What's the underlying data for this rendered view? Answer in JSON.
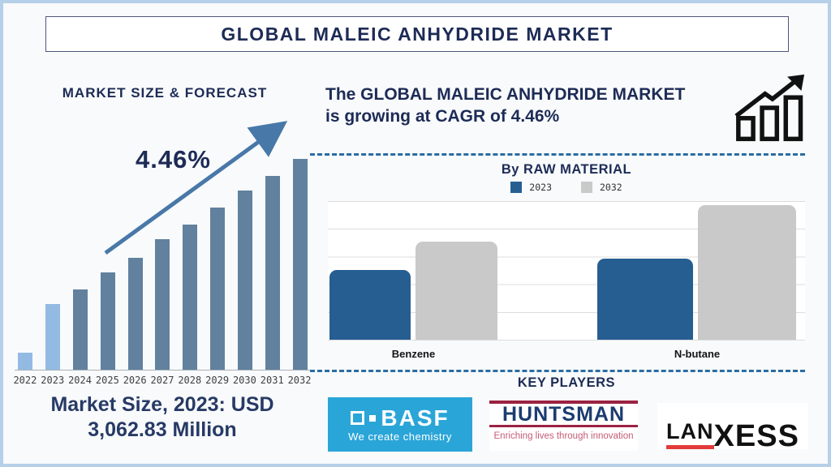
{
  "page": {
    "title": "GLOBAL MALEIC ANHYDRIDE MARKET"
  },
  "colors": {
    "navy_text": "#1d2b56",
    "forecast_bar_highlight": "#93bae2",
    "forecast_bar_main": "#61819f",
    "trend_arrow": "#4878a8",
    "divider_dash": "#2b6ca3",
    "raw_bar_2023": "#265e92",
    "raw_bar_2032": "#c9c9c9",
    "basf_background": "#2aa5d8",
    "huntsman_red": "#9b2242",
    "lanxess_red": "#e23b3b"
  },
  "left": {
    "heading": "MARKET SIZE & FORECAST",
    "cagr_label": "4.46%",
    "market_size_line1": "Market Size, 2023: USD",
    "market_size_line2": "3,062.83 Million"
  },
  "right": {
    "headline_line1": "The GLOBAL MALEIC ANHYDRIDE MARKET",
    "headline_line2": "is growing at CAGR of 4.46%",
    "raw_material_title": "By RAW MATERIAL",
    "legend": [
      {
        "label": "2023",
        "color": "#265e92"
      },
      {
        "label": "2032",
        "color": "#c9c9c9"
      }
    ],
    "key_players_title": "KEY PLAYERS",
    "logos": {
      "basf": {
        "brand": "BASF",
        "tagline": "We create chemistry"
      },
      "huntsman": {
        "brand": "HUNTSMAN",
        "tagline": "Enriching lives through innovation"
      },
      "lanxess": {
        "brand_part1": "LAN",
        "brand_part2": "XESS"
      }
    }
  },
  "chart_data": [
    {
      "type": "bar",
      "title": "MARKET SIZE & FORECAST",
      "categories": [
        "2022",
        "2023",
        "2024",
        "2025",
        "2026",
        "2027",
        "2028",
        "2029",
        "2030",
        "2031",
        "2032"
      ],
      "values_relative_pct": [
        8,
        31,
        38,
        46,
        53,
        62,
        69,
        77,
        85,
        92,
        100
      ],
      "bar_colors": [
        "#93bae2",
        "#93bae2",
        "#61819f",
        "#61819f",
        "#61819f",
        "#61819f",
        "#61819f",
        "#61819f",
        "#61819f",
        "#61819f",
        "#61819f"
      ],
      "annotation": "4.46%",
      "known_point": "Market Size, 2023: USD 3,062.83 Million",
      "xlabel": "",
      "ylabel": "",
      "grid": false,
      "note": "No y-axis shown; values are relative bar heights (% of tallest bar)."
    },
    {
      "type": "bar",
      "title": "By RAW MATERIAL",
      "categories": [
        "Benzene",
        "N-butane"
      ],
      "series": [
        {
          "name": "2023",
          "color": "#265e92",
          "values_relative_pct": [
            52,
            60
          ]
        },
        {
          "name": "2032",
          "color": "#c9c9c9",
          "values_relative_pct": [
            73,
            100
          ]
        }
      ],
      "legend_position": "top",
      "grid": true,
      "note": "No y-axis labels shown; values are relative bar heights (% of tallest bar)."
    }
  ]
}
